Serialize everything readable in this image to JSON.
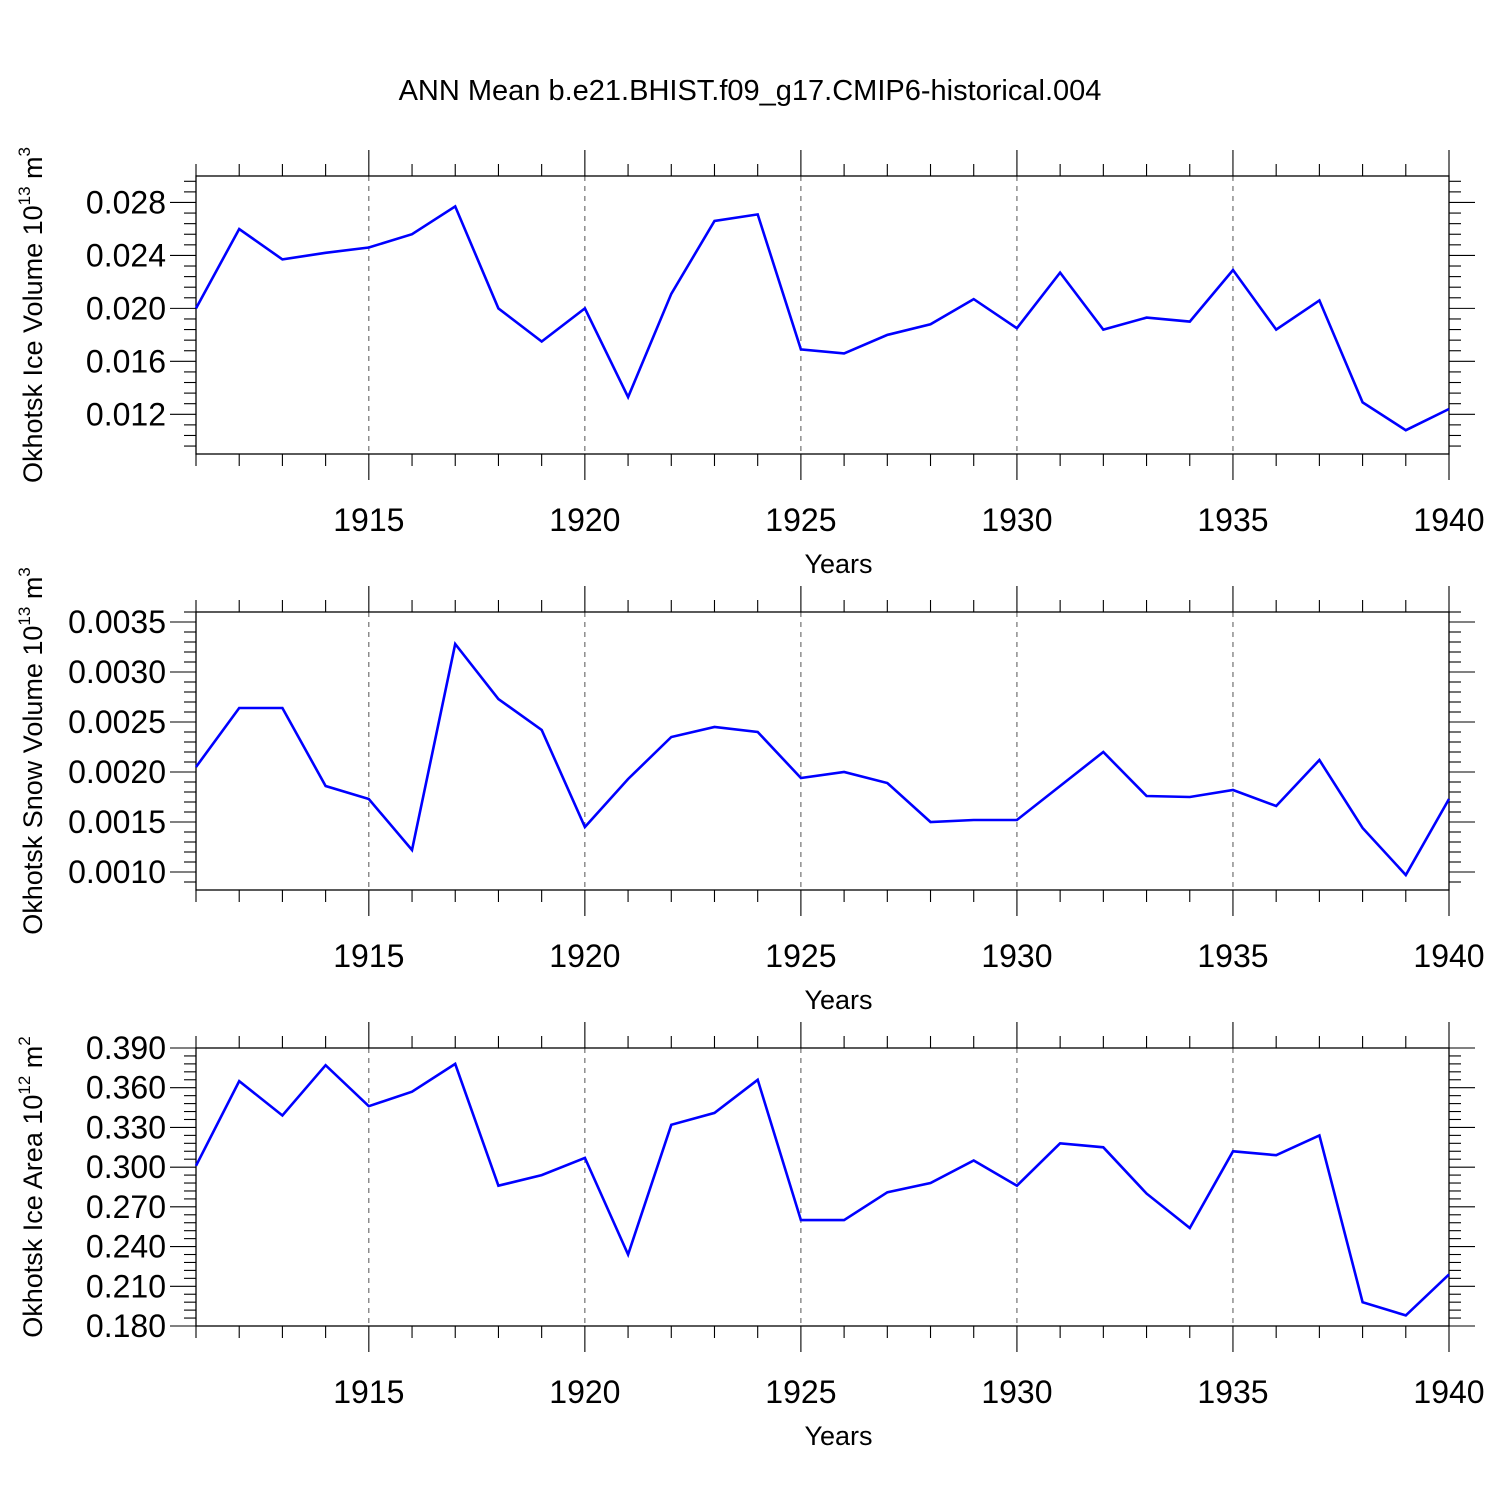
{
  "title": "ANN Mean b.e21.BHIST.f09_g17.CMIP6-historical.004",
  "chart_data": [
    {
      "type": "line",
      "ylabel": "Okhotsk Ice Volume",
      "yunit_base": "10",
      "yunit_exp": "13",
      "yunit_rest": "m",
      "yunit_rest_exp": "3",
      "xlabel": "Years",
      "xlim": [
        1911,
        1940
      ],
      "ylim": [
        0.009,
        0.03
      ],
      "xticks": [
        1915,
        1920,
        1925,
        1930,
        1935,
        1940
      ],
      "yticks": [
        0.012,
        0.016,
        0.02,
        0.024,
        0.028
      ],
      "ytick_labels": [
        "0.012",
        "0.016",
        "0.020",
        "0.024",
        "0.028"
      ],
      "color": "#0000ff",
      "x": [
        1911,
        1912,
        1913,
        1914,
        1915,
        1916,
        1917,
        1918,
        1919,
        1920,
        1921,
        1922,
        1923,
        1924,
        1925,
        1926,
        1927,
        1928,
        1929,
        1930,
        1931,
        1932,
        1933,
        1934,
        1935,
        1936,
        1937,
        1938,
        1939,
        1940
      ],
      "values": [
        0.02,
        0.026,
        0.0237,
        0.0242,
        0.0246,
        0.0256,
        0.0277,
        0.02,
        0.0175,
        0.02,
        0.0133,
        0.0211,
        0.0266,
        0.0271,
        0.0169,
        0.0166,
        0.018,
        0.0188,
        0.0207,
        0.0185,
        0.0227,
        0.0184,
        0.0193,
        0.019,
        0.0229,
        0.0184,
        0.0206,
        0.0129,
        0.0108,
        0.0124
      ]
    },
    {
      "type": "line",
      "ylabel": "Okhotsk Snow Volume",
      "yunit_base": "10",
      "yunit_exp": "13",
      "yunit_rest": "m",
      "yunit_rest_exp": "3",
      "xlabel": "Years",
      "xlim": [
        1911,
        1940
      ],
      "ylim": [
        0.00082,
        0.0036
      ],
      "xticks": [
        1915,
        1920,
        1925,
        1930,
        1935,
        1940
      ],
      "yticks": [
        0.001,
        0.0015,
        0.002,
        0.0025,
        0.003,
        0.0035
      ],
      "ytick_labels": [
        "0.0010",
        "0.0015",
        "0.0020",
        "0.0025",
        "0.0030",
        "0.0035"
      ],
      "color": "#0000ff",
      "x": [
        1911,
        1912,
        1913,
        1914,
        1915,
        1916,
        1917,
        1918,
        1919,
        1920,
        1921,
        1922,
        1923,
        1924,
        1925,
        1926,
        1927,
        1928,
        1929,
        1930,
        1931,
        1932,
        1933,
        1934,
        1935,
        1936,
        1937,
        1938,
        1939,
        1940
      ],
      "values": [
        0.00205,
        0.00264,
        0.00264,
        0.00186,
        0.00173,
        0.00122,
        0.00328,
        0.00273,
        0.00242,
        0.00145,
        0.00193,
        0.00235,
        0.00245,
        0.0024,
        0.00194,
        0.002,
        0.00189,
        0.0015,
        0.00152,
        0.00152,
        0.00186,
        0.0022,
        0.00176,
        0.00175,
        0.00182,
        0.00166,
        0.00212,
        0.00144,
        0.00097,
        0.00173
      ]
    },
    {
      "type": "line",
      "ylabel": "Okhotsk Ice Area",
      "yunit_base": "10",
      "yunit_exp": "12",
      "yunit_rest": "m",
      "yunit_rest_exp": "2",
      "xlabel": "Years",
      "xlim": [
        1911,
        1940
      ],
      "ylim": [
        0.18,
        0.39
      ],
      "xticks": [
        1915,
        1920,
        1925,
        1930,
        1935,
        1940
      ],
      "yticks": [
        0.18,
        0.21,
        0.24,
        0.27,
        0.3,
        0.33,
        0.36,
        0.39
      ],
      "ytick_labels": [
        "0.180",
        "0.210",
        "0.240",
        "0.270",
        "0.300",
        "0.330",
        "0.360",
        "0.390"
      ],
      "color": "#0000ff",
      "x": [
        1911,
        1912,
        1913,
        1914,
        1915,
        1916,
        1917,
        1918,
        1919,
        1920,
        1921,
        1922,
        1923,
        1924,
        1925,
        1926,
        1927,
        1928,
        1929,
        1930,
        1931,
        1932,
        1933,
        1934,
        1935,
        1936,
        1937,
        1938,
        1939,
        1940
      ],
      "values": [
        0.301,
        0.365,
        0.339,
        0.377,
        0.346,
        0.357,
        0.378,
        0.286,
        0.294,
        0.307,
        0.234,
        0.332,
        0.341,
        0.366,
        0.26,
        0.26,
        0.281,
        0.288,
        0.305,
        0.286,
        0.318,
        0.315,
        0.28,
        0.254,
        0.312,
        0.309,
        0.324,
        0.198,
        0.188,
        0.219
      ]
    }
  ]
}
